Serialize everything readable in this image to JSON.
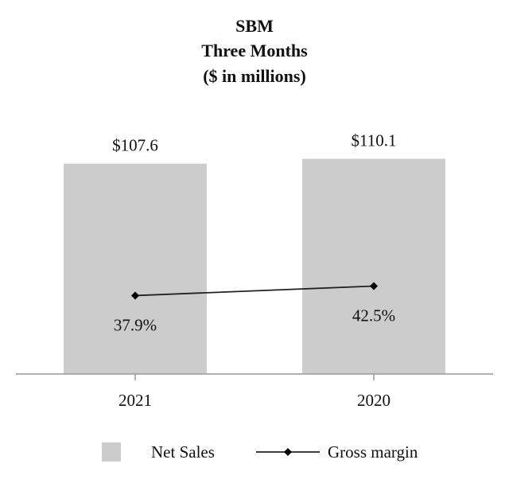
{
  "chart_data": {
    "type": "bar",
    "title": [
      "SBM",
      "Three Months",
      "($ in millions)"
    ],
    "categories": [
      "2021",
      "2020"
    ],
    "series": [
      {
        "name": "Net Sales",
        "kind": "bar",
        "values": [
          107.6,
          110.1
        ],
        "labels": [
          "$107.6",
          "$110.1"
        ],
        "color": "#cccccc"
      },
      {
        "name": "Gross margin",
        "kind": "line",
        "values": [
          37.9,
          42.5
        ],
        "labels": [
          "37.9%",
          "42.5%"
        ],
        "color": "#222222"
      }
    ],
    "ylim_net_sales": [
      0,
      114
    ],
    "ylim_gross_margin": [
      0,
      100
    ],
    "xlabel": "",
    "ylabel": "",
    "grid": false,
    "legend_position": "bottom"
  }
}
